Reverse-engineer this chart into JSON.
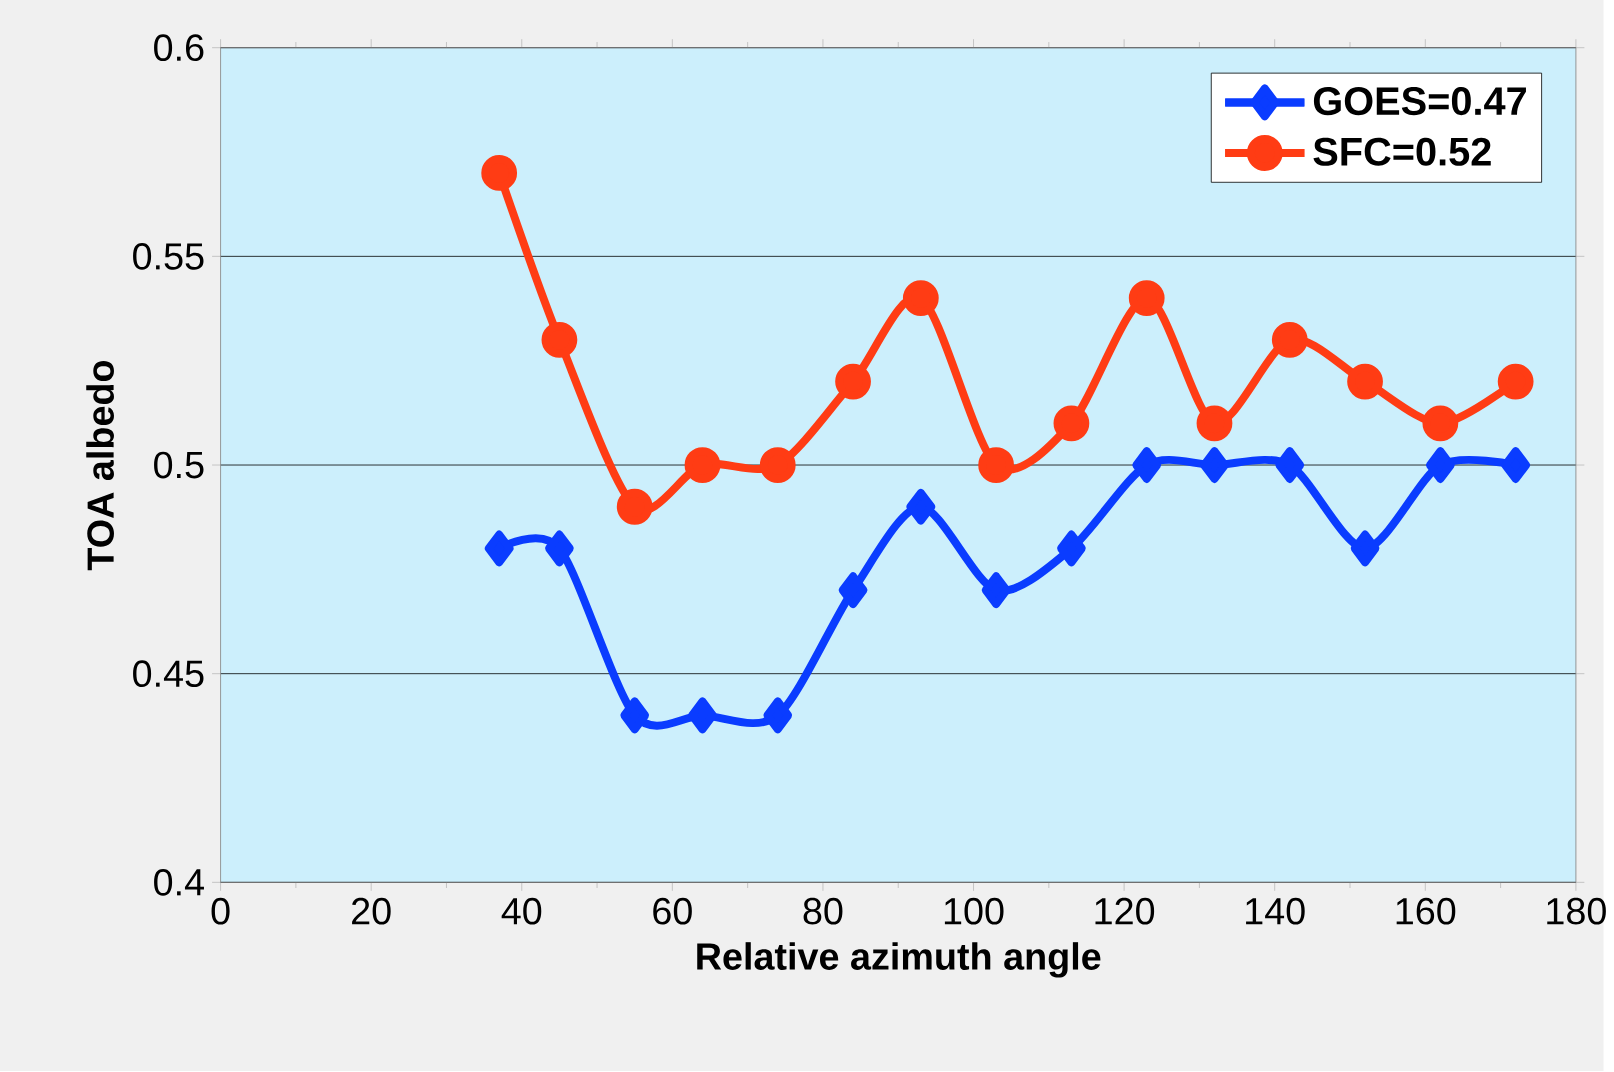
{
  "chart_data": {
    "type": "line",
    "xlabel": "Relative azimuth angle",
    "ylabel": "TOA albedo",
    "xlim": [
      0,
      180
    ],
    "xticks": [
      0,
      20,
      40,
      60,
      80,
      100,
      120,
      140,
      160,
      180
    ],
    "ylim": [
      0.4,
      0.6
    ],
    "yticks": [
      0.4,
      0.45,
      0.5,
      0.55,
      0.6
    ],
    "grid": "y",
    "legend": "top right",
    "series": [
      {
        "name": "GOES=0.47",
        "color": "#0a3cff",
        "marker": "diamond",
        "x": [
          37,
          45,
          55,
          64,
          74,
          84,
          93,
          103,
          113,
          123,
          132,
          142,
          152,
          162,
          172
        ],
        "values": [
          0.48,
          0.48,
          0.44,
          0.44,
          0.44,
          0.47,
          0.49,
          0.47,
          0.48,
          0.5,
          0.5,
          0.5,
          0.48,
          0.5,
          0.5
        ]
      },
      {
        "name": "SFC=0.52",
        "color": "#ff3c14",
        "marker": "circle",
        "x": [
          37,
          45,
          55,
          64,
          74,
          84,
          93,
          103,
          113,
          123,
          132,
          142,
          152,
          162,
          172
        ],
        "values": [
          0.57,
          0.53,
          0.49,
          0.5,
          0.5,
          0.52,
          0.54,
          0.5,
          0.51,
          0.54,
          0.51,
          0.53,
          0.52,
          0.51,
          0.52
        ]
      }
    ]
  }
}
